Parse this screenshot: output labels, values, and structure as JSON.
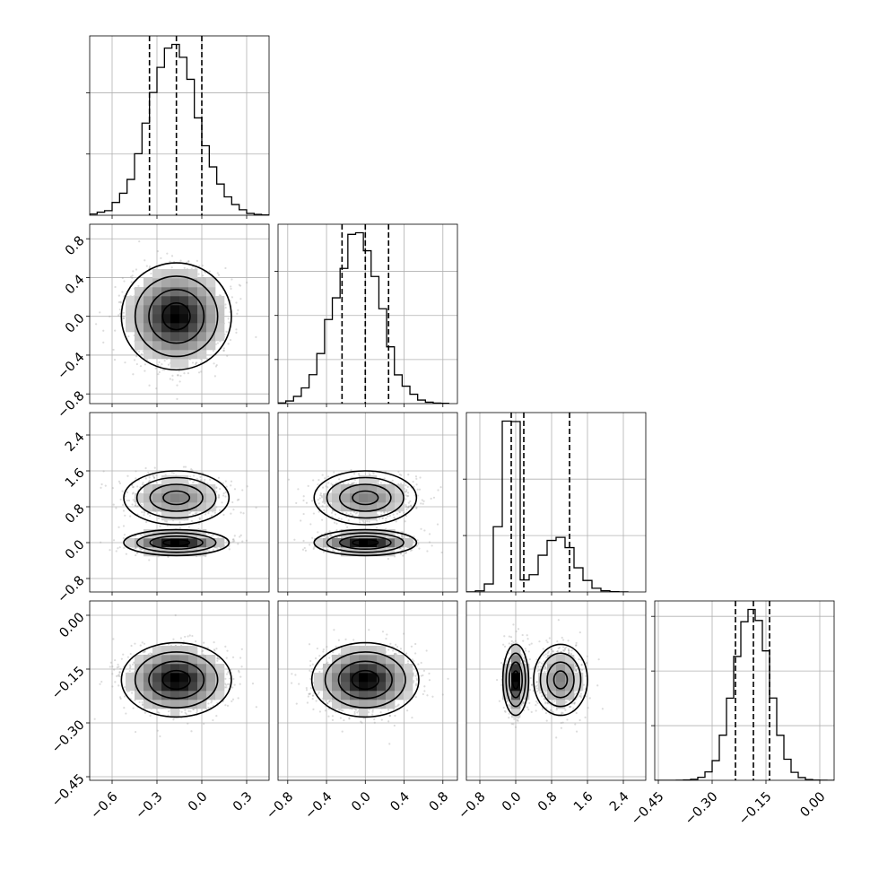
{
  "chart_data": {
    "type": "corner",
    "n_params": 4,
    "parameters": [
      {
        "index": 0,
        "mean": -0.17,
        "std": 0.16,
        "range": [
          -0.75,
          0.45
        ],
        "ticks": [
          -0.6,
          -0.3,
          0.0,
          0.3
        ],
        "tick_labels": [
          "−0.6",
          "−0.3",
          "0.0",
          "0.3"
        ],
        "quantiles": [
          -0.35,
          -0.17,
          0.0
        ],
        "hist_edges": [
          -0.75,
          -0.7,
          -0.65,
          -0.6,
          -0.55,
          -0.5,
          -0.45,
          -0.4,
          -0.35,
          -0.3,
          -0.25,
          -0.2,
          -0.15,
          -0.1,
          -0.05,
          0.0,
          0.05,
          0.1,
          0.15,
          0.2,
          0.25,
          0.3,
          0.35,
          0.4,
          0.45
        ],
        "hist_counts": [
          4,
          10,
          15,
          42,
          72,
          117,
          201,
          301,
          401,
          483,
          546,
          558,
          516,
          444,
          318,
          227,
          158,
          102,
          60,
          35,
          18,
          6,
          3,
          1
        ]
      },
      {
        "index": 1,
        "mean": 0.0,
        "std": 0.24,
        "range": [
          -0.9,
          0.95
        ],
        "ticks": [
          -0.8,
          -0.4,
          0.0,
          0.4,
          0.8
        ],
        "tick_labels": [
          "−0.8",
          "−0.4",
          "0.0",
          "0.4",
          "0.8"
        ],
        "quantiles": [
          -0.24,
          0.0,
          0.24
        ],
        "hist_edges": [
          -0.9,
          -0.82,
          -0.74,
          -0.66,
          -0.58,
          -0.5,
          -0.42,
          -0.34,
          -0.26,
          -0.18,
          -0.1,
          -0.02,
          0.06,
          0.14,
          0.22,
          0.3,
          0.38,
          0.46,
          0.54,
          0.62,
          0.7,
          0.78,
          0.86
        ],
        "hist_counts": [
          4,
          15,
          41,
          89,
          164,
          284,
          477,
          600,
          767,
          960,
          969,
          867,
          721,
          538,
          322,
          163,
          99,
          53,
          20,
          8,
          3,
          2
        ]
      },
      {
        "index": 2,
        "mode": "bimodal",
        "components": [
          {
            "mean": 0.0,
            "std": 0.12,
            "weight": 0.5
          },
          {
            "mean": 1.0,
            "std": 0.25,
            "weight": 0.5
          }
        ],
        "range": [
          -1.1,
          2.9
        ],
        "ticks": [
          -0.8,
          0.0,
          0.8,
          1.6,
          2.4
        ],
        "tick_labels": [
          "−0.8",
          "0.0",
          "0.8",
          "1.6",
          "2.4"
        ],
        "quantiles": [
          -0.1,
          0.18,
          1.2
        ],
        "hist_edges": [
          -1.1,
          -0.9,
          -0.7,
          -0.5,
          -0.3,
          -0.1,
          0.1,
          0.3,
          0.5,
          0.7,
          0.9,
          1.1,
          1.3,
          1.5,
          1.7,
          1.9,
          2.1,
          2.3,
          2.5
        ],
        "hist_counts": [
          2,
          20,
          142,
          1156,
          3028,
          3020,
          214,
          306,
          651,
          913,
          968,
          786,
          428,
          204,
          66,
          21,
          5,
          1
        ]
      },
      {
        "index": 3,
        "mean": -0.18,
        "std": 0.045,
        "range": [
          -0.46,
          0.04
        ],
        "ticks": [
          -0.45,
          -0.3,
          -0.15,
          0.0
        ],
        "tick_labels": [
          "−0.45",
          "−0.30",
          "−0.15",
          "0.00"
        ],
        "quantiles": [
          -0.235,
          -0.185,
          -0.14
        ],
        "hist_edges": [
          -0.46,
          -0.44,
          -0.42,
          -0.4,
          -0.38,
          -0.36,
          -0.34,
          -0.32,
          -0.3,
          -0.28,
          -0.26,
          -0.24,
          -0.22,
          -0.2,
          -0.18,
          -0.16,
          -0.14,
          -0.12,
          -0.1,
          -0.08,
          -0.06,
          -0.04,
          -0.02,
          0.0,
          0.02,
          0.04
        ],
        "hist_counts": [
          0,
          0,
          0,
          1,
          3,
          9,
          28,
          77,
          180,
          413,
          752,
          1133,
          1451,
          1563,
          1462,
          1184,
          753,
          412,
          193,
          73,
          25,
          7,
          2,
          1,
          0
        ]
      }
    ],
    "histogram_ticks": {
      "0": [
        200,
        400
      ],
      "1": [
        250,
        500,
        750
      ],
      "2": [
        1000,
        2000
      ],
      "3": [
        500,
        1000,
        1500
      ]
    },
    "contour_levels_sigma": [
      0.5,
      1.0,
      1.5,
      2.0
    ],
    "scatter_color": "#9a9a9a",
    "line_color": "#000000",
    "grid": true,
    "title": "",
    "xlabel": "",
    "ylabel": ""
  }
}
